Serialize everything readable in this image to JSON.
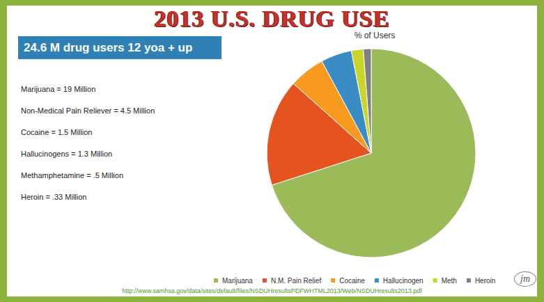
{
  "header": {
    "title": "2013 U.S. DRUG USE",
    "subtitle": "24.6 M drug users 12 yoa + up"
  },
  "list": [
    "Marijuana = 19 Million",
    "Non-Medical Pain Reliever = 4.5 Million",
    "Cocaine = 1.5 Million",
    "Hallucinogens = 1.3 Million",
    "Methamphetamine = .5 Million",
    "Heroin = .33 Million"
  ],
  "source": "http://www.samhsa.gov/data/sites/default/files/NSDUHresultsPDFWHTML2013/Web/NSDUHresults2013.pdf",
  "logo": "jm",
  "chart_data": {
    "type": "pie",
    "title": "% of Users",
    "categories": [
      "Marijuana",
      "N.M. Pain Relief",
      "Cocaine",
      "Hallucinogen",
      "Meth",
      "Heroin"
    ],
    "values": [
      19,
      4.5,
      1.5,
      1.3,
      0.5,
      0.33
    ],
    "colors": [
      "#9bbb59",
      "#e5541f",
      "#f79a1e",
      "#3a8cc4",
      "#c8d62a",
      "#7f7f7f"
    ],
    "legend": "bottom",
    "data_labels": false
  }
}
